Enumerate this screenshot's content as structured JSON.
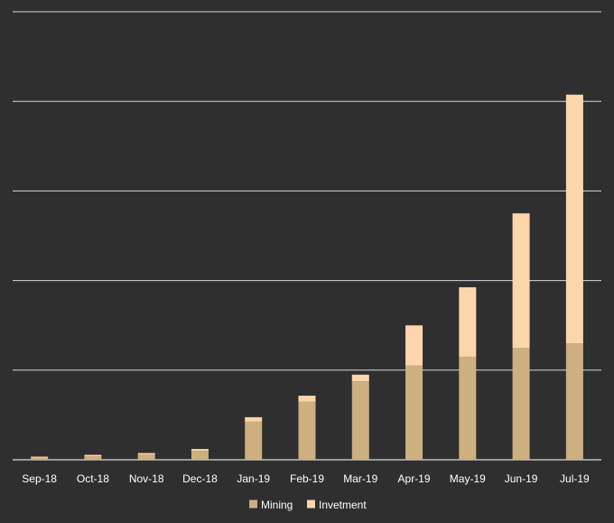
{
  "chart_data": {
    "type": "bar",
    "stacked": true,
    "categories": [
      "Sep-18",
      "Oct-18",
      "Nov-18",
      "Dec-18",
      "Jan-19",
      "Feb-19",
      "Mar-19",
      "Apr-19",
      "May-19",
      "Jun-19",
      "Jul-19"
    ],
    "series": [
      {
        "name": "Mining",
        "color": "#cdaf80",
        "values": [
          0.5,
          0.8,
          1.2,
          2.0,
          8.5,
          13.0,
          17.5,
          21.0,
          23.0,
          25.0,
          26.0
        ]
      },
      {
        "name": "Invetment",
        "color": "#fcd6ab",
        "values": [
          0.2,
          0.3,
          0.3,
          0.4,
          1.0,
          1.3,
          1.5,
          9.0,
          15.5,
          30.0,
          55.5
        ]
      }
    ],
    "title": "",
    "xlabel": "",
    "ylabel": "",
    "ylim": [
      0,
      100
    ],
    "grid": true,
    "y_tick_labels_shown": false,
    "legend_position": "bottom",
    "background_color": "#2f2f2f",
    "gridline_color": "#d9d9de",
    "text_color": "#ffffff"
  }
}
